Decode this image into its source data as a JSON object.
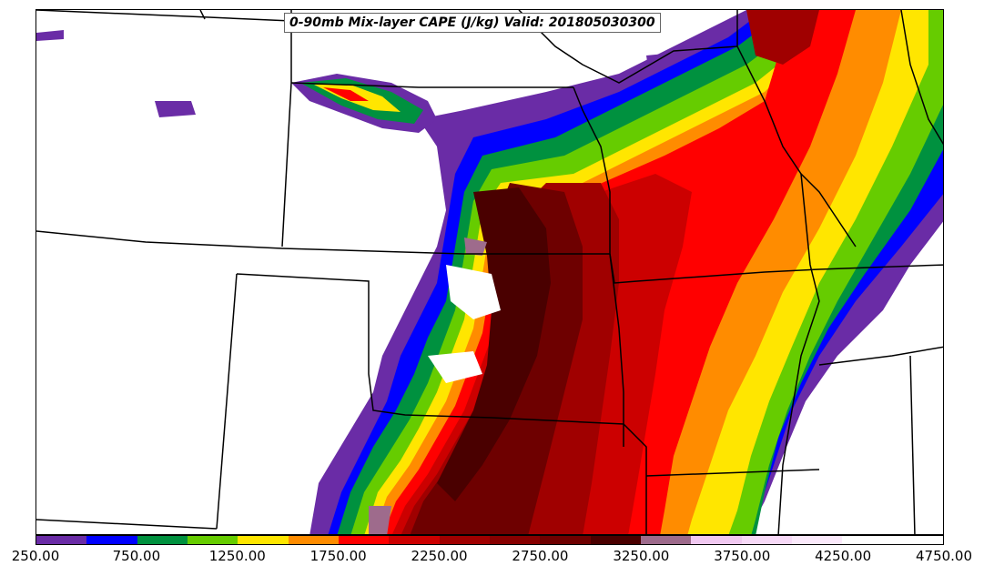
{
  "title": "0-90mb Mix-layer CAPE (J/kg) Valid: 201805030300",
  "colorbar": {
    "colors": [
      "#6a2ca6",
      "#0000ff",
      "#00913f",
      "#66cc00",
      "#ffe600",
      "#ff8c00",
      "#ff0000",
      "#cc0000",
      "#a00000",
      "#870000",
      "#6e0000",
      "#4a0000",
      "#9e6b8c",
      "#f0c8f0",
      "#f7d9f7",
      "#fbe9fb",
      "#ffffff",
      "#ffffff"
    ],
    "tick_labels": [
      "250.00",
      "750.00",
      "1250.00",
      "1750.00",
      "2250.00",
      "2750.00",
      "3250.00",
      "3750.00",
      "4250.00",
      "4750.00"
    ]
  }
}
